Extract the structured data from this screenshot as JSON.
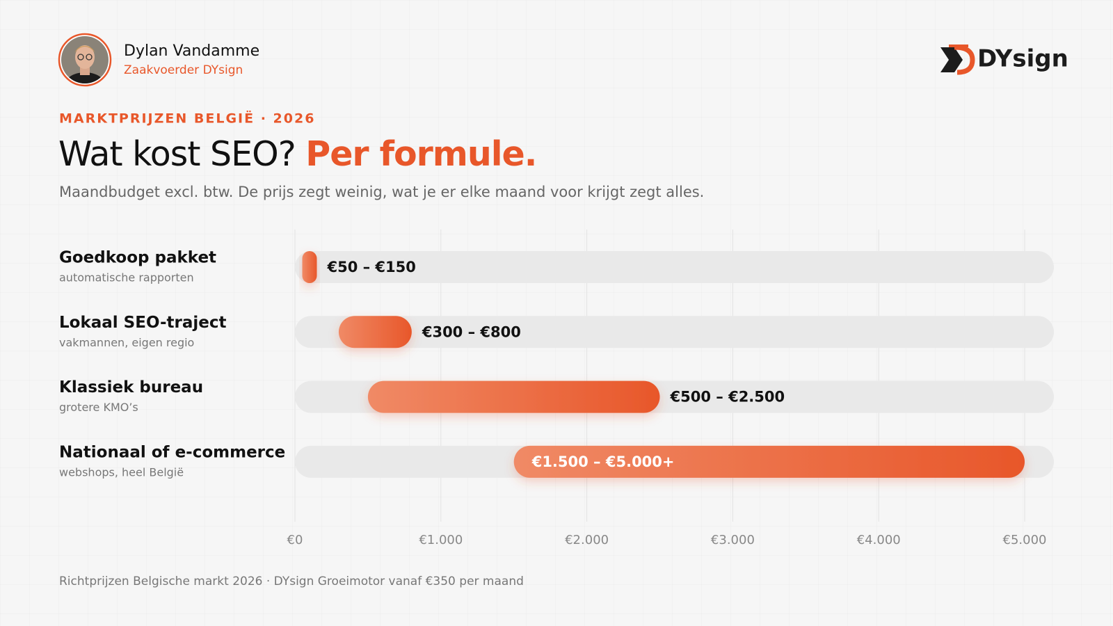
{
  "header": {
    "author_name": "Dylan Vandamme",
    "author_role": "Zaakvoerder DYsign",
    "brand": "DYsign"
  },
  "chart_data": {
    "type": "range-bar",
    "kicker": "MARKTPRIJZEN BELGIË · 2026",
    "title": "Wat kost SEO?",
    "title_accent": "Per formule.",
    "subtitle": "Maandbudget excl. btw. De prijs zegt weinig, wat je er elke maand voor krijgt zegt alles.",
    "categories": [
      "Goedkoop pakket",
      "Lokaal SEO-traject",
      "Klassiek bureau",
      "Nationaal of e-commerce"
    ],
    "category_notes": [
      "automatische rapporten",
      "vakmannen, eigen regio",
      "grotere KMO’s",
      "webshops, heel België"
    ],
    "low": [
      50,
      300,
      500,
      1500
    ],
    "high": [
      150,
      800,
      2500,
      5000
    ],
    "value_labels": [
      "€50 – €150",
      "€300 – €800",
      "€500 – €2.500",
      "€1.500 – €5.000+"
    ],
    "color": "#e8572a",
    "xlim": [
      0,
      5200
    ],
    "xticks": [
      {
        "value": 0,
        "label": "€0"
      },
      {
        "value": 1000,
        "label": "€1.000"
      },
      {
        "value": 2000,
        "label": "€2.000"
      },
      {
        "value": 3000,
        "label": "€3.000"
      },
      {
        "value": 4000,
        "label": "€4.000"
      },
      {
        "value": 5000,
        "label": "€5.000"
      }
    ],
    "grid": true,
    "footnote": "Richtprijzen Belgische markt 2026 · DYsign Groeimotor vanaf €350 per maand"
  }
}
